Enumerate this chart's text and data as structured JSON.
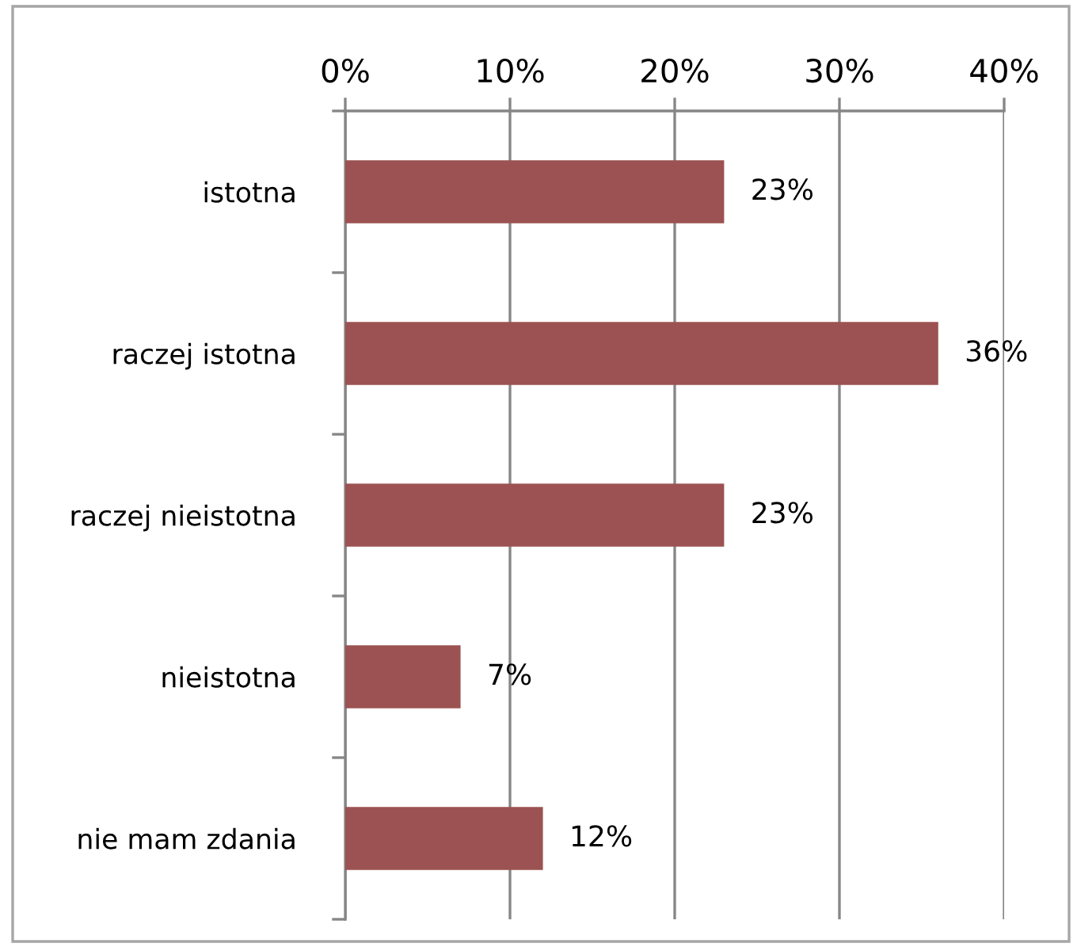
{
  "chart_data": {
    "type": "bar",
    "orientation": "horizontal",
    "categories": [
      "istotna",
      "raczej istotna",
      "raczej nieistotna",
      "nieistotna",
      "nie mam zdania"
    ],
    "values": [
      23,
      36,
      23,
      7,
      12
    ],
    "value_labels": [
      "23%",
      "36%",
      "23%",
      "7%",
      "12%"
    ],
    "color": "#9c5252",
    "xlim": [
      0,
      40
    ],
    "xticks": [
      {
        "value": 0,
        "label": "0%"
      },
      {
        "value": 10,
        "label": "10%"
      },
      {
        "value": 20,
        "label": "20%"
      },
      {
        "value": 30,
        "label": "30%"
      },
      {
        "value": 40,
        "label": "40%"
      }
    ],
    "grid": "x"
  }
}
